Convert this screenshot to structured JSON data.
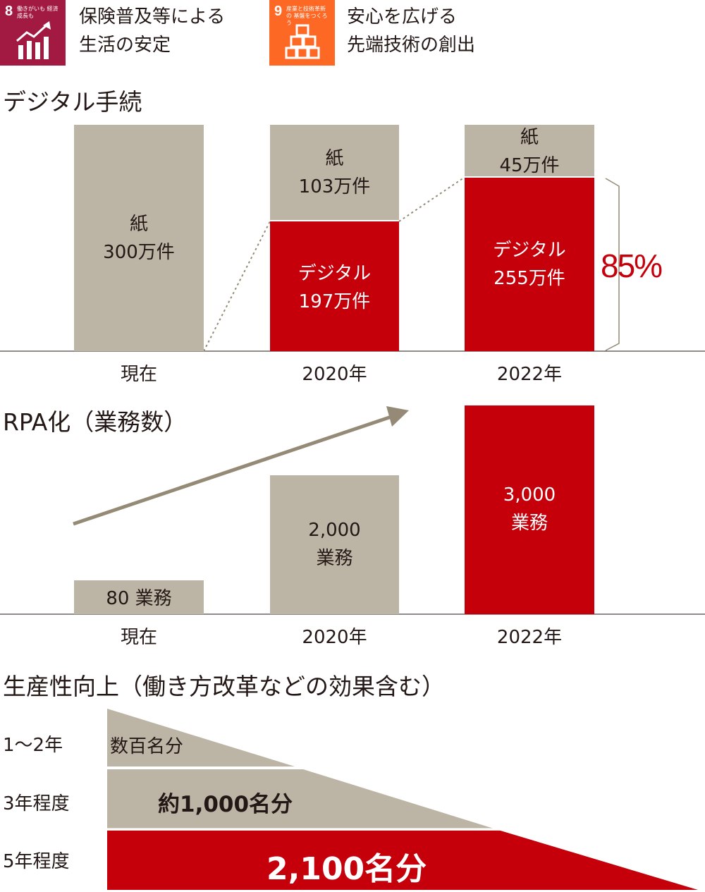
{
  "sdg": [
    {
      "num": "8",
      "sub": "働きがいも 経済成長も",
      "icon": "growth-chart-icon",
      "text": [
        "保険普及等による",
        "生活の安定"
      ],
      "color": "#a21942"
    },
    {
      "num": "9",
      "sub": "産業と技術革新の 基盤をつくろう",
      "icon": "cubes-icon",
      "text": [
        "安心を広げる",
        "先端技術の創出"
      ],
      "color": "#fd6925"
    }
  ],
  "colors": {
    "paper": "#bcb4a5",
    "digital": "#c5000b",
    "accent": "#c5000b",
    "arrow": "#948a76"
  },
  "chart_data": [
    {
      "type": "bar",
      "title": "デジタル手続",
      "categories": [
        "現在",
        "2020年",
        "2022年"
      ],
      "series": [
        {
          "name": "紙",
          "values": [
            300,
            103,
            45
          ],
          "labels": [
            [
              "紙",
              "300万件"
            ],
            [
              "紙",
              "103万件"
            ],
            [
              "紙",
              "45万件"
            ]
          ]
        },
        {
          "name": "デジタル",
          "values": [
            0,
            197,
            255
          ],
          "labels": [
            [],
            [
              "デジタル",
              "197万件"
            ],
            [
              "デジタル",
              "255万件"
            ]
          ]
        }
      ],
      "annotation": "85%",
      "ylim": [
        0,
        300
      ]
    },
    {
      "type": "bar",
      "title": "RPA化（業務数）",
      "categories": [
        "現在",
        "2020年",
        "2022年"
      ],
      "values": [
        80,
        2000,
        3000
      ],
      "labels": [
        [
          "80 業務"
        ],
        [
          "2,000",
          "業務"
        ],
        [
          "3,000",
          "業務"
        ]
      ]
    },
    {
      "type": "area",
      "title": "生産性向上（働き方改革などの効果含む）",
      "categories": [
        "1〜2年",
        "3年程度",
        "5年程度"
      ],
      "values": [
        300,
        1000,
        2100
      ],
      "labels": [
        "数百名分",
        "約1,000名分",
        "2,100名分"
      ]
    }
  ]
}
